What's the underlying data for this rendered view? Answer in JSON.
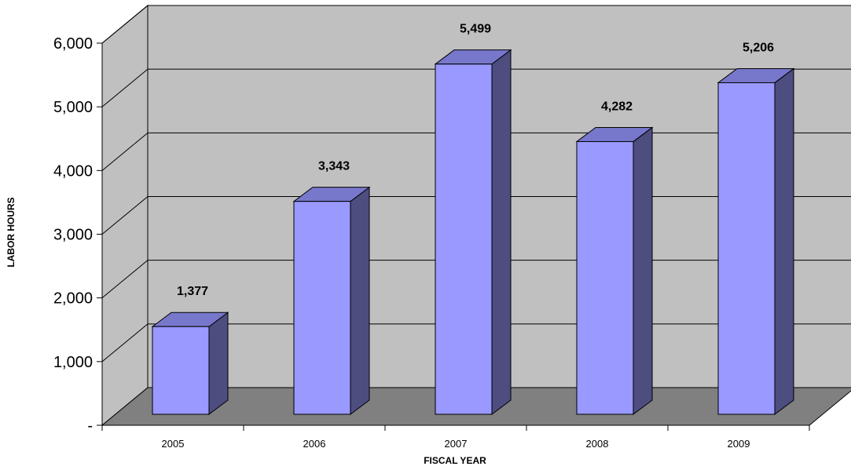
{
  "chart_data": {
    "type": "bar",
    "title": "",
    "xlabel": "FISCAL YEAR",
    "ylabel": "LABOR HOURS",
    "categories": [
      "2005",
      "2006",
      "2007",
      "2008",
      "2009"
    ],
    "values": [
      1377,
      3343,
      5499,
      4282,
      5206
    ],
    "value_labels": [
      "1,377",
      "3,343",
      "5,499",
      "4,282",
      "5,206"
    ],
    "ylim": [
      0,
      6000
    ],
    "yticks": [
      0,
      1000,
      2000,
      3000,
      4000,
      5000,
      6000
    ],
    "ytick_labels": [
      "-",
      "1,000",
      "2,000",
      "3,000",
      "4,000",
      "5,000",
      "6,000"
    ],
    "grid": true,
    "style": "3d-column",
    "colors": {
      "bar_front": "#9999ff",
      "bar_side": "#4d4d80",
      "bar_top": "#7777cc",
      "wall": "#c0c0c0",
      "floor": "#808080"
    }
  }
}
